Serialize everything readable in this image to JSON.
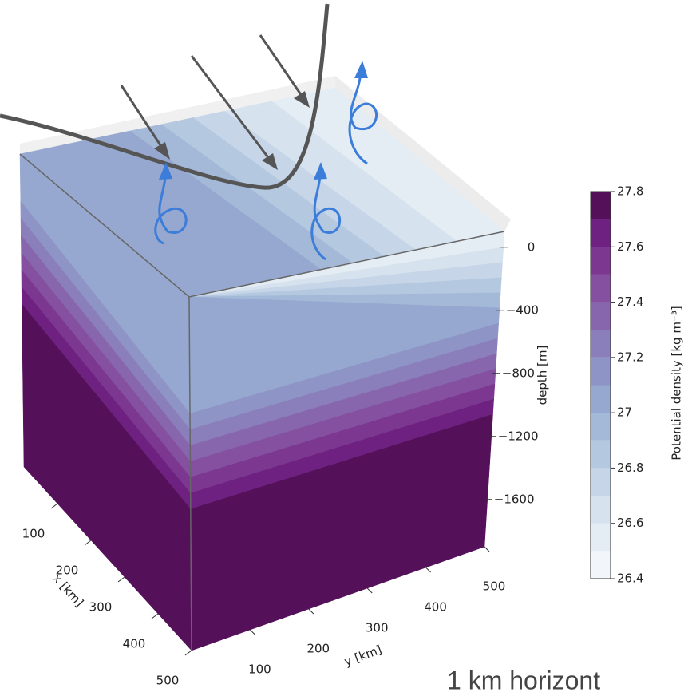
{
  "chart_data": {
    "type": "contour3d",
    "x_label": "x [km]",
    "xlim": [
      0,
      500
    ],
    "xticks": [
      100,
      200,
      300,
      400,
      500
    ],
    "y_label": "y [km]",
    "ylim": [
      0,
      500
    ],
    "yticks": [
      100,
      200,
      300,
      400,
      500
    ],
    "z_label": "depth [m]",
    "zlim": [
      -1900,
      100
    ],
    "zticks": [
      0,
      {
        "value": -400,
        "label": "−400"
      },
      {
        "value": -800,
        "label": "−800"
      },
      {
        "value": -1200,
        "label": "−1200"
      },
      {
        "value": -1600,
        "label": "−1600"
      }
    ],
    "colorbar_label": "Potential density [kg m⁻³]",
    "levels": [
      26.4,
      26.5,
      26.6,
      26.7,
      26.8,
      26.9,
      27.0,
      27.1,
      27.2,
      27.3,
      27.4,
      27.5,
      27.6,
      27.7,
      27.8
    ],
    "colorbar_ticks": [
      26.4,
      26.6,
      26.8,
      27.0,
      27.2,
      27.4,
      27.6,
      27.8
    ],
    "colors": [
      "#f2f6fa",
      "#e4ecf4",
      "#d6e2ee",
      "#c6d6e8",
      "#b4c8e0",
      "#a4b9d8",
      "#96a8cf",
      "#8e95c6",
      "#8a7fbb",
      "#8766ad",
      "#84509f",
      "#7c3790",
      "#6e2180",
      "#55105a"
    ],
    "annotation": "1 km horizont"
  }
}
